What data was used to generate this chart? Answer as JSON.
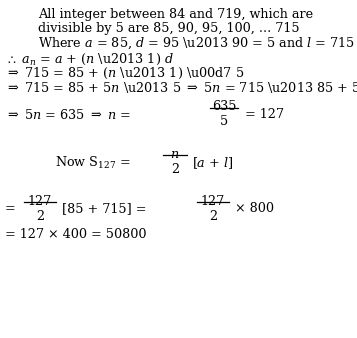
{
  "background_color": "#ffffff",
  "figsize": [
    3.57,
    3.38
  ],
  "dpi": 100,
  "fs": 9.2
}
